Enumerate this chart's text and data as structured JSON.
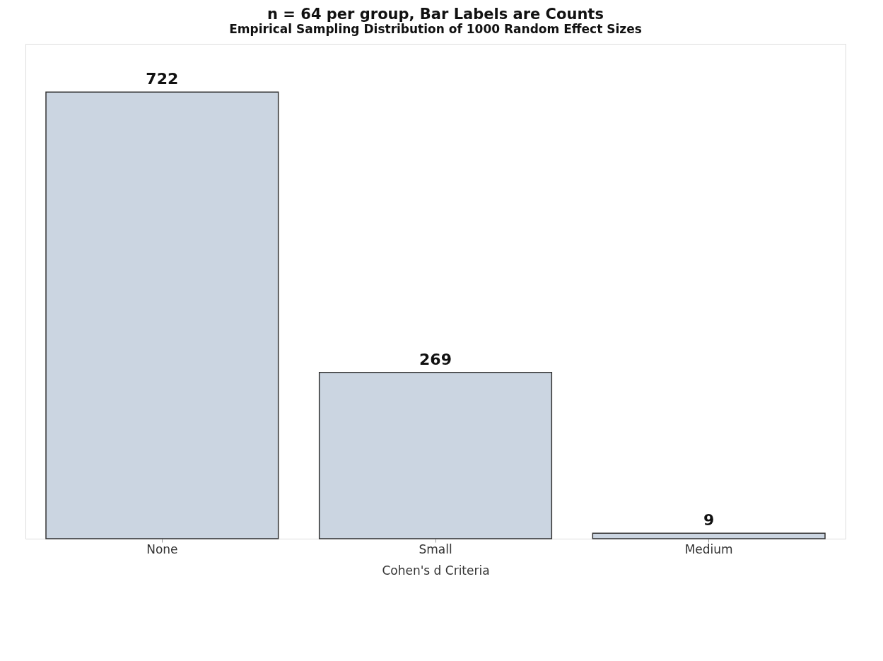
{
  "chart_data": {
    "type": "bar",
    "title": "n = 64 per group, Bar Labels are Counts",
    "subtitle": "Empirical Sampling Distribution of 1000 Random Effect Sizes",
    "xlabel": "Cohen's d Criteria",
    "categories": [
      "None",
      "Small",
      "Medium"
    ],
    "values": [
      722,
      269,
      9
    ],
    "color": "#cbd5e1",
    "data_labels": true,
    "grid": false,
    "tick_labels": "x"
  }
}
